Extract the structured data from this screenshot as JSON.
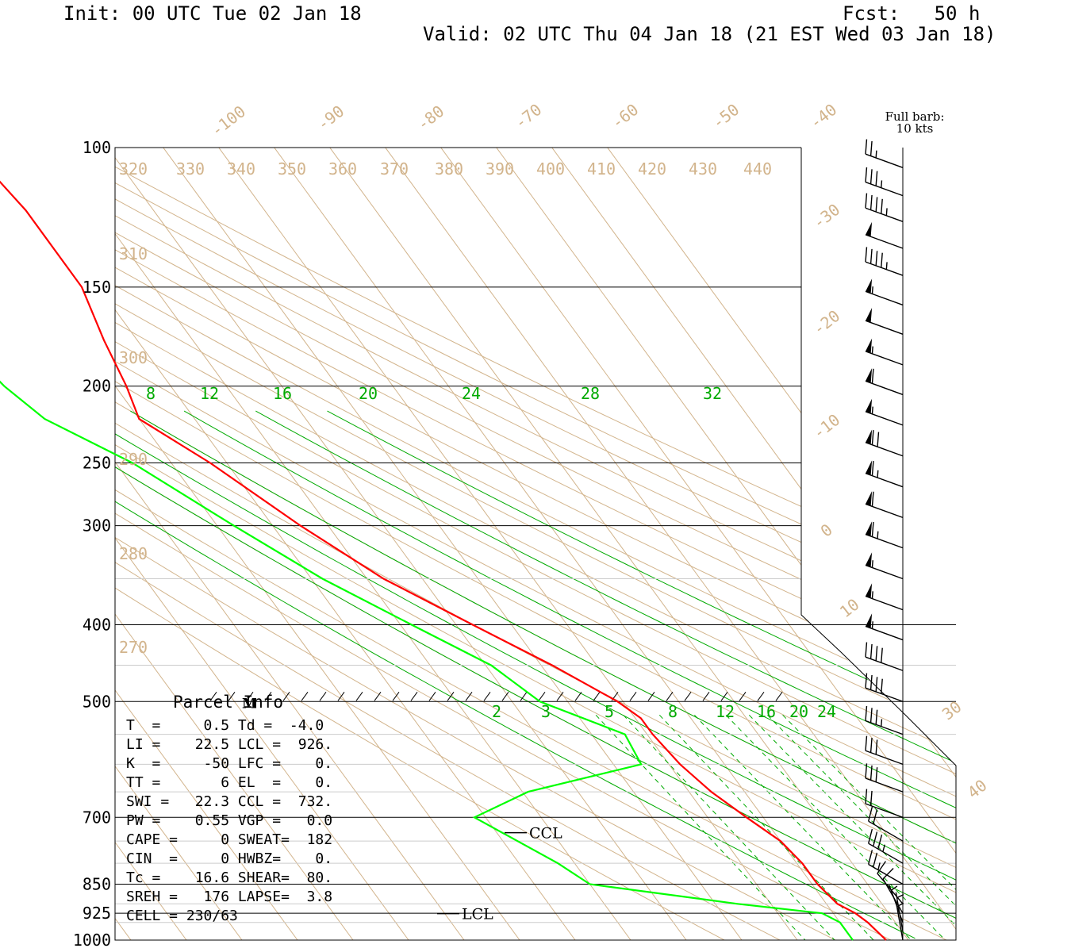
{
  "header": {
    "init": "Init: 00 UTC Tue 02 Jan 18",
    "fcst": "Fcst:   50 h",
    "valid": "Valid: 02 UTC Thu 04 Jan 18 (21 EST Wed 03 Jan 18)"
  },
  "barb_legend": {
    "line1": "Full barb:",
    "line2": "10 kts"
  },
  "parcel": {
    "title": "Parcel Info",
    "rows": [
      "T  =     0.5 Td =  -4.0",
      "LI =    22.5 LCL =  926.",
      "K  =     -50 LFC =    0.",
      "TT =       6 EL  =    0.",
      "SWI =   22.3 CCL =  732.",
      "PW =    0.55 VGP =   0.0",
      "CAPE =     0 SWEAT=  182",
      "CIN  =     0 HWBZ=    0.",
      "Tc =    16.6 SHEAR=  80.",
      "SREH =   176 LAPSE=  3.8",
      "CELL = 230/63"
    ]
  },
  "chart_data": {
    "type": "line",
    "pressure_labels": [
      "100",
      "150",
      "200",
      "250",
      "300",
      "400",
      "500",
      "700",
      "850",
      "925",
      "1000"
    ],
    "isotherm_labels": [
      "-100",
      "-90",
      "-80",
      "-70",
      "-60",
      "-50",
      "-40",
      "-30",
      "-20",
      "-10",
      "0",
      "10",
      "30",
      "40"
    ],
    "theta_labels": [
      "320",
      "330",
      "340",
      "350",
      "360",
      "370",
      "380",
      "390",
      "400",
      "410",
      "420",
      "430",
      "440",
      "310",
      "300",
      "290",
      "280",
      "270"
    ],
    "mixing_ratio_upper_labels": [
      "8",
      "12",
      "16",
      "20",
      "24",
      "28",
      "32"
    ],
    "mixing_ratio_lower_labels": [
      "2",
      "3",
      "5",
      "8",
      "12",
      "16",
      "20",
      "24"
    ],
    "annotations": {
      "ccl": "CCL",
      "lcl": "LCL",
      "m": "M"
    },
    "series": [
      {
        "name": "temperature",
        "color": "#ff0000",
        "points": [
          [
            100,
            -55
          ],
          [
            120,
            -53
          ],
          [
            150,
            -53
          ],
          [
            175,
            -56
          ],
          [
            200,
            -58
          ],
          [
            220,
            -60
          ],
          [
            250,
            -53
          ],
          [
            300,
            -45
          ],
          [
            350,
            -37
          ],
          [
            400,
            -27
          ],
          [
            450,
            -18
          ],
          [
            500,
            -11
          ],
          [
            525,
            -9
          ],
          [
            550,
            -9
          ],
          [
            600,
            -8
          ],
          [
            650,
            -6
          ],
          [
            700,
            -3
          ],
          [
            750,
            0
          ],
          [
            800,
            1
          ],
          [
            850,
            1
          ],
          [
            900,
            2
          ],
          [
            925,
            4
          ],
          [
            950,
            5
          ],
          [
            1000,
            6
          ]
        ]
      },
      {
        "name": "dewpoint",
        "color": "#00ff00",
        "points": [
          [
            100,
            -85
          ],
          [
            120,
            -82
          ],
          [
            140,
            -82
          ],
          [
            150,
            -84
          ],
          [
            160,
            -86
          ],
          [
            175,
            -82
          ],
          [
            200,
            -80
          ],
          [
            220,
            -77
          ],
          [
            250,
            -67
          ],
          [
            300,
            -57
          ],
          [
            350,
            -48
          ],
          [
            400,
            -38
          ],
          [
            450,
            -29
          ],
          [
            500,
            -25
          ],
          [
            550,
            -14
          ],
          [
            600,
            -15
          ],
          [
            650,
            -39
          ],
          [
            700,
            -52
          ],
          [
            800,
            -43
          ],
          [
            850,
            -40
          ],
          [
            900,
            -16
          ],
          [
            925,
            -2
          ],
          [
            950,
            0
          ],
          [
            1000,
            0
          ]
        ]
      }
    ],
    "wind_barbs": [
      {
        "p": 106,
        "dir": 290,
        "kt": 25
      },
      {
        "p": 115,
        "dir": 290,
        "kt": 35
      },
      {
        "p": 124,
        "dir": 290,
        "kt": 45
      },
      {
        "p": 134,
        "dir": 290,
        "kt": 50
      },
      {
        "p": 145,
        "dir": 290,
        "kt": 45
      },
      {
        "p": 158,
        "dir": 290,
        "kt": 55
      },
      {
        "p": 172,
        "dir": 290,
        "kt": 50
      },
      {
        "p": 188,
        "dir": 290,
        "kt": 55
      },
      {
        "p": 205,
        "dir": 290,
        "kt": 60
      },
      {
        "p": 224,
        "dir": 290,
        "kt": 55
      },
      {
        "p": 245,
        "dir": 290,
        "kt": 70
      },
      {
        "p": 268,
        "dir": 290,
        "kt": 65
      },
      {
        "p": 293,
        "dir": 290,
        "kt": 60
      },
      {
        "p": 320,
        "dir": 290,
        "kt": 65
      },
      {
        "p": 350,
        "dir": 290,
        "kt": 55
      },
      {
        "p": 383,
        "dir": 290,
        "kt": 55
      },
      {
        "p": 418,
        "dir": 290,
        "kt": 55
      },
      {
        "p": 457,
        "dir": 290,
        "kt": 40
      },
      {
        "p": 500,
        "dir": 290,
        "kt": 40
      },
      {
        "p": 550,
        "dir": 290,
        "kt": 35
      },
      {
        "p": 600,
        "dir": 290,
        "kt": 30
      },
      {
        "p": 650,
        "dir": 290,
        "kt": 30
      },
      {
        "p": 700,
        "dir": 290,
        "kt": 20
      },
      {
        "p": 750,
        "dir": 300,
        "kt": 20
      },
      {
        "p": 800,
        "dir": 300,
        "kt": 35
      },
      {
        "p": 850,
        "dir": 300,
        "kt": 25
      },
      {
        "p": 900,
        "dir": 320,
        "kt": 10
      },
      {
        "p": 925,
        "dir": 330,
        "kt": 10
      },
      {
        "p": 950,
        "dir": 340,
        "kt": 5
      },
      {
        "p": 975,
        "dir": 350,
        "kt": 5
      },
      {
        "p": 1000,
        "dir": 350,
        "kt": 5
      }
    ],
    "colors": {
      "temperature": "#ff0000",
      "dewpoint": "#00ff00",
      "background_lines": "#d2b48c",
      "mixing_ratio": "#00aa00"
    }
  }
}
